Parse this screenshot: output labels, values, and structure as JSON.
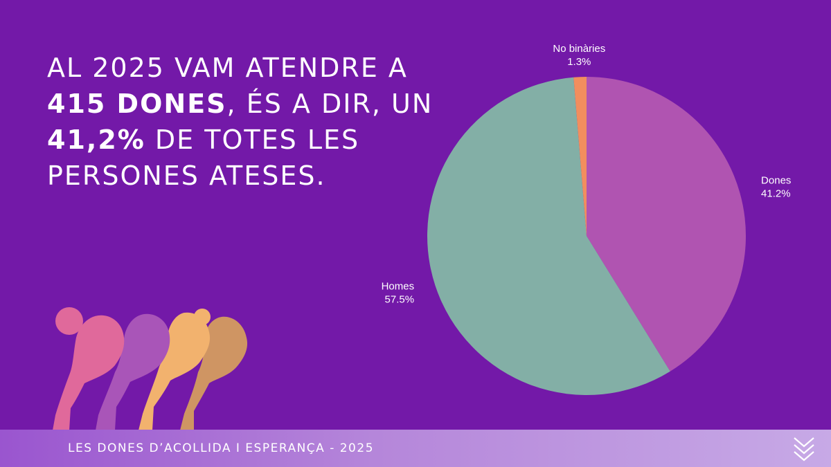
{
  "headline": {
    "part1": "AL 2025 VAM ATENDRE A ",
    "bold1": "415 DONES",
    "part2": ", ÉS A DIR, UN ",
    "bold2": "41,2%",
    "part3": " DE TOTES LES PERSONES ATESES."
  },
  "footer": {
    "text": "LES DONES D’ACOLLIDA I ESPERANÇA - 2025"
  },
  "icons": {
    "footer": "chevrons-down-icon",
    "illustration": "women-silhouettes-icon"
  },
  "chart_data": {
    "type": "pie",
    "title": "",
    "slices": [
      {
        "label": "Dones",
        "value": 41.2,
        "display": "41.2%",
        "color": "#b054b1"
      },
      {
        "label": "Homes",
        "value": 57.5,
        "display": "57.5%",
        "color": "#83afa6"
      },
      {
        "label": "No binàries",
        "value": 1.3,
        "display": "1.3%",
        "color": "#f28e5e"
      }
    ],
    "start": "12 o'clock",
    "direction": "clockwise",
    "legend": "none"
  },
  "colors": {
    "background": "#7319a8",
    "silhouettes": [
      "#e0699b",
      "#a955b8",
      "#f2b26e",
      "#cf9563"
    ]
  }
}
